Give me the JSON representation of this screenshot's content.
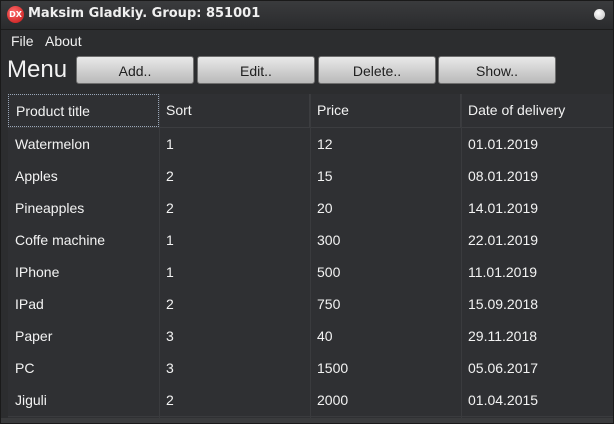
{
  "window": {
    "title": "Maksim Gladkiy. Group: 851001",
    "icon_text": "DX"
  },
  "menubar": {
    "items": [
      {
        "label": "File"
      },
      {
        "label": "About"
      }
    ]
  },
  "toolbar": {
    "heading": "Menu",
    "buttons": [
      {
        "label": "Add.."
      },
      {
        "label": "Edit.."
      },
      {
        "label": "Delete.."
      },
      {
        "label": "Show.."
      }
    ]
  },
  "table": {
    "columns": [
      "Product title",
      "Sort",
      "Price",
      "Date of delivery"
    ],
    "rows": [
      [
        "Watermelon",
        "1",
        "12",
        "01.01.2019"
      ],
      [
        "Apples",
        "2",
        "15",
        "08.01.2019"
      ],
      [
        "Pineapples",
        "2",
        "20",
        "14.01.2019"
      ],
      [
        "Coffe machine",
        "1",
        "300",
        "22.01.2019"
      ],
      [
        "IPhone",
        "1",
        "500",
        "11.01.2019"
      ],
      [
        "IPad",
        "2",
        "750",
        "15.09.2018"
      ],
      [
        "Paper",
        "3",
        "40",
        "29.11.2018"
      ],
      [
        "PC",
        "3",
        "1500",
        "05.06.2017"
      ],
      [
        "Jiguli",
        "2",
        "2000",
        "01.04.2015"
      ]
    ]
  },
  "colors": {
    "background": "#2c2d2f",
    "button_face": "#d6d6d6",
    "text": "#f3f3f3"
  }
}
